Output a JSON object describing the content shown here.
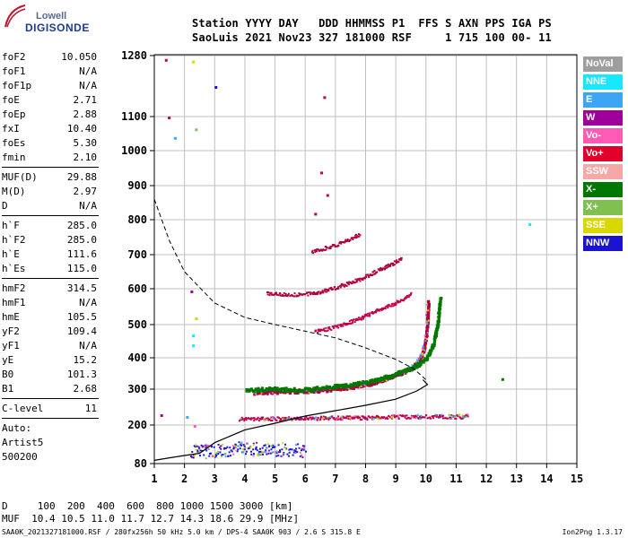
{
  "logo": {
    "line1": "Lowell",
    "line2": "DIGISONDE"
  },
  "header": {
    "line1": "Station YYYY DAY   DDD HHMMSS P1  FFS S AXN PPS IGA PS",
    "line2": "SaoLuis 2021 Nov23 327 181000 RSF     1 715 100 00- 11"
  },
  "params": {
    "group1": [
      {
        "label": "foF2",
        "value": "10.050"
      },
      {
        "label": "foF1",
        "value": "N/A"
      },
      {
        "label": "foF1p",
        "value": "N/A"
      },
      {
        "label": "foE",
        "value": "2.71"
      },
      {
        "label": "foEp",
        "value": "2.88"
      },
      {
        "label": "fxI",
        "value": "10.40"
      },
      {
        "label": "foEs",
        "value": "5.30"
      },
      {
        "label": "fmin",
        "value": "2.10"
      }
    ],
    "group2": [
      {
        "label": "MUF(D)",
        "value": "29.88"
      },
      {
        "label": "M(D)",
        "value": "2.97"
      },
      {
        "label": "D",
        "value": "N/A"
      }
    ],
    "group3": [
      {
        "label": "h`F",
        "value": "285.0"
      },
      {
        "label": "h`F2",
        "value": "285.0"
      },
      {
        "label": "h`E",
        "value": "111.6"
      },
      {
        "label": "h`Es",
        "value": "115.0"
      }
    ],
    "group4": [
      {
        "label": "hmF2",
        "value": "314.5"
      },
      {
        "label": "hmF1",
        "value": "N/A"
      },
      {
        "label": "hmE",
        "value": "105.5"
      },
      {
        "label": "yF2",
        "value": "109.4"
      },
      {
        "label": "yF1",
        "value": "N/A"
      },
      {
        "label": "yE",
        "value": "15.2"
      },
      {
        "label": "B0",
        "value": "101.3"
      },
      {
        "label": "B1",
        "value": "2.68"
      }
    ],
    "clevel": {
      "label": "C-level",
      "value": "11"
    },
    "auto": [
      "Auto:",
      "Artist5",
      "500200"
    ]
  },
  "legend": [
    {
      "label": "NoVal",
      "color": "#9e9e9e"
    },
    {
      "label": "NNE",
      "color": "#19e6ff"
    },
    {
      "label": "E",
      "color": "#3da5f5"
    },
    {
      "label": "W",
      "color": "#a0009a"
    },
    {
      "label": "Vo-",
      "color": "#ff5ab4"
    },
    {
      "label": "Vo+",
      "color": "#e0002a"
    },
    {
      "label": "SSW",
      "color": "#f5a8a8"
    },
    {
      "label": "X-",
      "color": "#007800"
    },
    {
      "label": "X+",
      "color": "#7fc050"
    },
    {
      "label": "SSE",
      "color": "#d8d800"
    },
    {
      "label": "NNW",
      "color": "#1a14d0"
    }
  ],
  "footer": {
    "line1": "D     100  200  400  600  800 1000 1500 3000 [km]",
    "line2": "MUF  10.4 10.5 11.0 11.7 12.7 14.3 18.6 29.9 [MHz]",
    "line3": "SAA0K_2021327181000.RSF / 280fx256h 50 kHz 5.0 km / DPS-4 SAA0K 903 / 2.6 S 315.8 E",
    "version": "Ion2Png 1.3.17"
  },
  "chart_data": {
    "type": "scatter",
    "xlim": [
      1,
      15
    ],
    "ylim": [
      80,
      1280
    ],
    "x_ticks": [
      1,
      2,
      3,
      4,
      5,
      6,
      7,
      8,
      9,
      10,
      11,
      12,
      13,
      14,
      15
    ],
    "y_ticks": [
      80,
      200,
      300,
      400,
      500,
      600,
      700,
      800,
      900,
      1000,
      1100,
      1280
    ],
    "grid": true,
    "series": [
      {
        "kind": "o-trace",
        "color": "#b0003a",
        "points": [
          [
            4.3,
            293
          ],
          [
            4.8,
            295
          ],
          [
            5.5,
            296
          ],
          [
            6.5,
            300
          ],
          [
            7.5,
            310
          ],
          [
            8.3,
            325
          ],
          [
            8.9,
            345
          ],
          [
            9.4,
            365
          ],
          [
            9.7,
            385
          ],
          [
            9.9,
            430
          ],
          [
            10.0,
            480
          ],
          [
            10.05,
            570
          ]
        ]
      },
      {
        "kind": "x-trace",
        "color": "#007800",
        "points": [
          [
            4.0,
            298
          ],
          [
            4.8,
            305
          ],
          [
            5.8,
            300
          ],
          [
            7.0,
            312
          ],
          [
            8.0,
            325
          ],
          [
            8.8,
            345
          ],
          [
            9.6,
            375
          ],
          [
            10.0,
            400
          ],
          [
            10.2,
            440
          ],
          [
            10.35,
            500
          ],
          [
            10.45,
            580
          ]
        ]
      },
      {
        "kind": "o-2hop",
        "color": "#b0003a",
        "points": [
          [
            4.7,
            590
          ],
          [
            5.5,
            585
          ],
          [
            6.2,
            588
          ],
          [
            7.0,
            605
          ],
          [
            7.8,
            630
          ],
          [
            8.5,
            660
          ],
          [
            9.2,
            690
          ]
        ]
      },
      {
        "kind": "o-3hop",
        "color": "#c0004a",
        "points": [
          [
            6.3,
            480
          ],
          [
            7.0,
            495
          ],
          [
            7.8,
            520
          ],
          [
            8.5,
            545
          ],
          [
            9.2,
            570
          ],
          [
            9.5,
            590
          ]
        ]
      },
      {
        "kind": "o-upper",
        "color": "#b0003a",
        "points": [
          [
            6.2,
            710
          ],
          [
            7.0,
            730
          ],
          [
            7.8,
            760
          ]
        ]
      },
      {
        "kind": "es",
        "color": "#c0004a",
        "points": [
          [
            3.8,
            218
          ],
          [
            5.0,
            220
          ],
          [
            6.0,
            220
          ],
          [
            7.0,
            222
          ],
          [
            8.0,
            222
          ],
          [
            9.0,
            225
          ],
          [
            10.0,
            225
          ],
          [
            11.0,
            225
          ],
          [
            11.4,
            226
          ]
        ]
      },
      {
        "kind": "e-layer",
        "color": "#1a14d0",
        "points": [
          [
            2.2,
            118
          ],
          [
            2.6,
            120
          ],
          [
            3.0,
            122
          ],
          [
            3.4,
            125
          ],
          [
            3.8,
            130
          ],
          [
            4.2,
            128
          ],
          [
            4.6,
            126
          ],
          [
            5.0,
            125
          ],
          [
            5.5,
            124
          ],
          [
            6.0,
            125
          ]
        ]
      }
    ],
    "profile": [
      [
        1.0,
        90
      ],
      [
        1.5,
        98
      ],
      [
        2.0,
        105
      ],
      [
        2.5,
        112
      ],
      [
        2.7,
        125
      ],
      [
        3.0,
        145
      ],
      [
        4.0,
        185
      ],
      [
        5.0,
        205
      ],
      [
        6.0,
        225
      ],
      [
        7.0,
        240
      ],
      [
        8.0,
        255
      ],
      [
        9.0,
        272
      ],
      [
        9.7,
        295
      ],
      [
        10.05,
        314.5
      ],
      [
        9.9,
        330
      ]
    ],
    "muf_curve": [
      [
        1.0,
        860
      ],
      [
        1.5,
        740
      ],
      [
        2.0,
        650
      ],
      [
        3.0,
        560
      ],
      [
        4.0,
        520
      ],
      [
        5.0,
        500
      ],
      [
        6.0,
        480
      ],
      [
        7.0,
        460
      ],
      [
        8.0,
        430
      ],
      [
        9.0,
        395
      ],
      [
        9.6,
        365
      ],
      [
        10.0,
        330
      ]
    ]
  }
}
